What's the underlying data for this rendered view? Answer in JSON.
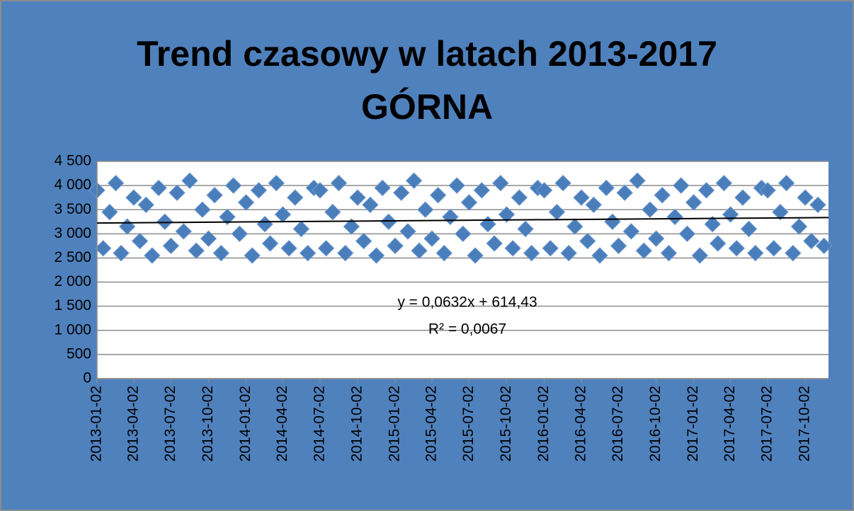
{
  "chart_data": {
    "type": "scatter",
    "title": [
      "Trend czasowy w latach 2013-2017",
      "GÓRNA"
    ],
    "color": "#4a7ebb",
    "x": [
      "2013-01-02",
      "2013-01-17",
      "2013-02-02",
      "2013-02-17",
      "2013-03-02",
      "2013-03-17",
      "2013-04-02",
      "2013-04-17",
      "2013-05-02",
      "2013-05-17",
      "2013-06-02",
      "2013-06-17",
      "2013-07-02",
      "2013-07-17",
      "2013-08-02",
      "2013-08-17",
      "2013-09-02",
      "2013-09-17",
      "2013-10-02",
      "2013-10-17",
      "2013-11-02",
      "2013-11-17",
      "2013-12-02",
      "2013-12-17",
      "2014-01-02",
      "2014-01-17",
      "2014-02-02",
      "2014-02-17",
      "2014-03-02",
      "2014-03-17",
      "2014-04-02",
      "2014-04-17",
      "2014-05-02",
      "2014-05-17",
      "2014-06-02",
      "2014-06-17",
      "2014-07-02",
      "2014-07-17",
      "2014-08-02",
      "2014-08-17",
      "2014-09-02",
      "2014-09-17",
      "2014-10-02",
      "2014-10-17",
      "2014-11-02",
      "2014-11-17",
      "2014-12-02",
      "2014-12-17",
      "2015-01-02",
      "2015-01-17",
      "2015-02-02",
      "2015-02-17",
      "2015-03-02",
      "2015-03-17",
      "2015-04-02",
      "2015-04-17",
      "2015-05-02",
      "2015-05-17",
      "2015-06-02",
      "2015-06-17",
      "2015-07-02",
      "2015-07-17",
      "2015-08-02",
      "2015-08-17",
      "2015-09-02",
      "2015-09-17",
      "2015-10-02",
      "2015-10-17",
      "2015-11-02",
      "2015-11-17",
      "2015-12-02",
      "2015-12-17",
      "2016-01-02",
      "2016-01-17",
      "2016-02-02",
      "2016-02-17",
      "2016-03-02",
      "2016-03-17",
      "2016-04-02",
      "2016-04-17",
      "2016-05-02",
      "2016-05-17",
      "2016-06-02",
      "2016-06-17",
      "2016-07-02",
      "2016-07-17",
      "2016-08-02",
      "2016-08-17",
      "2016-09-02",
      "2016-09-17",
      "2016-10-02",
      "2016-10-17",
      "2016-11-02",
      "2016-11-17",
      "2016-12-02",
      "2016-12-17",
      "2017-01-02",
      "2017-01-17",
      "2017-02-02",
      "2017-02-17",
      "2017-03-02",
      "2017-03-17",
      "2017-04-02",
      "2017-04-17",
      "2017-05-02",
      "2017-05-17",
      "2017-06-02",
      "2017-06-17",
      "2017-07-02",
      "2017-07-17",
      "2017-08-02",
      "2017-08-17",
      "2017-09-02",
      "2017-09-17",
      "2017-10-02",
      "2017-10-17",
      "2017-11-02",
      "2017-11-17"
    ],
    "values": [
      3900,
      2700,
      3450,
      4050,
      2600,
      3150,
      3750,
      2850,
      3600,
      2550,
      3950,
      3250,
      2750,
      3850,
      3050,
      4100,
      2650,
      3500,
      2900,
      3800,
      2600,
      3350,
      4000,
      3000,
      3650,
      2550,
      3900,
      3200,
      2800,
      4050,
      3400,
      2700,
      3750,
      3100,
      2600,
      3950,
      3900,
      2700,
      3450,
      4050,
      2600,
      3150,
      3750,
      2850,
      3600,
      2550,
      3950,
      3250,
      2750,
      3850,
      3050,
      4100,
      2650,
      3500,
      2900,
      3800,
      2600,
      3350,
      4000,
      3000,
      3650,
      2550,
      3900,
      3200,
      2800,
      4050,
      3400,
      2700,
      3750,
      3100,
      2600,
      3950,
      3900,
      2700,
      3450,
      4050,
      2600,
      3150,
      3750,
      2850,
      3600,
      2550,
      3950,
      3250,
      2750,
      3850,
      3050,
      4100,
      2650,
      3500,
      2900,
      3800,
      2600,
      3350,
      4000,
      3000,
      3650,
      2550,
      3900,
      3200,
      2800,
      4050,
      3400,
      2700,
      3750,
      3100,
      2600,
      3950,
      3900,
      2700,
      3450,
      4050,
      2600,
      3150,
      3750,
      2850,
      3600,
      2750
    ],
    "xlim": [
      "2013-01-02",
      "2017-11-28"
    ],
    "xticks": [
      "2013-01-02",
      "2013-04-02",
      "2013-07-02",
      "2013-10-02",
      "2014-01-02",
      "2014-04-02",
      "2014-07-02",
      "2014-10-02",
      "2015-01-02",
      "2015-04-02",
      "2015-07-02",
      "2015-10-02",
      "2016-01-02",
      "2016-04-02",
      "2016-07-02",
      "2016-10-02",
      "2017-01-02",
      "2017-04-02",
      "2017-07-02",
      "2017-10-02"
    ],
    "ylim": [
      0,
      4500
    ],
    "yticks": [
      0,
      500,
      {
        "value": 1000,
        "label": "1 000"
      },
      {
        "value": 1500,
        "label": "1 500"
      },
      {
        "value": 2000,
        "label": "2 000"
      },
      {
        "value": 2500,
        "label": "2 500"
      },
      {
        "value": 3000,
        "label": "3 000"
      },
      {
        "value": 3500,
        "label": "3 500"
      },
      {
        "value": 4000,
        "label": "4 000"
      },
      {
        "value": 4500,
        "label": "4 500"
      }
    ],
    "grid": true,
    "trendline": {
      "slope": 0.0632,
      "intercept": 614.43,
      "color": "#000000",
      "equation": "y = 0,0632x + 614,43",
      "r2": "R² = 0,0067"
    }
  }
}
